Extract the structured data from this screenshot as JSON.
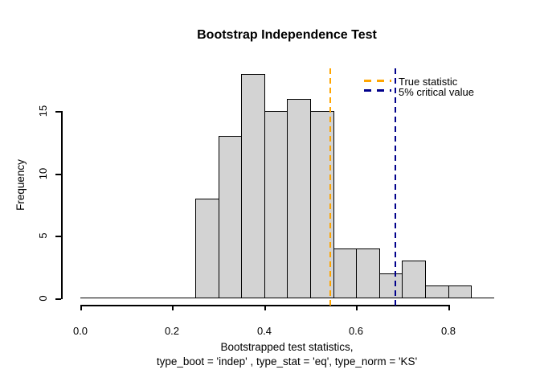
{
  "chart_data": {
    "type": "bar",
    "subtype": "histogram",
    "title": "Bootstrap Independence Test",
    "ylabel": "Frequency",
    "xlabel_line1": "Bootstrapped test statistics,",
    "xlabel_line2": "type_boot = 'indep' , type_stat = 'eq', type_norm = 'KS'",
    "bin_start": 0.25,
    "bin_width": 0.05,
    "counts": [
      8,
      13,
      18,
      15,
      16,
      15,
      4,
      4,
      2,
      3,
      1,
      1
    ],
    "total_samples": 100,
    "xlim": [
      0.0,
      0.9
    ],
    "ylim": [
      0,
      18
    ],
    "x_ticks": [
      0.0,
      0.2,
      0.4,
      0.6,
      0.8
    ],
    "x_tick_labels": [
      "0.0",
      "0.2",
      "0.4",
      "0.6",
      "0.8"
    ],
    "y_ticks": [
      0,
      5,
      10,
      15
    ],
    "y_tick_labels": [
      "0",
      "5",
      "10",
      "15"
    ],
    "grid": false,
    "bar_fill": "#d3d3d3",
    "bar_border": "#000000",
    "axis_color": "#000000",
    "vlines": [
      {
        "name": "true-statistic",
        "value": 0.543,
        "color": "#FFA500",
        "style": "dashed",
        "label": "True statistic"
      },
      {
        "name": "critical-value",
        "value": 0.686,
        "color": "#00008B",
        "style": "dashed",
        "label": "5% critical value"
      }
    ],
    "legend": {
      "position": "top-right",
      "items": [
        {
          "label": "True statistic",
          "color": "#FFA500",
          "line_style": "dashed"
        },
        {
          "label": "5% critical value",
          "color": "#00008B",
          "line_style": "dashed"
        }
      ]
    }
  }
}
